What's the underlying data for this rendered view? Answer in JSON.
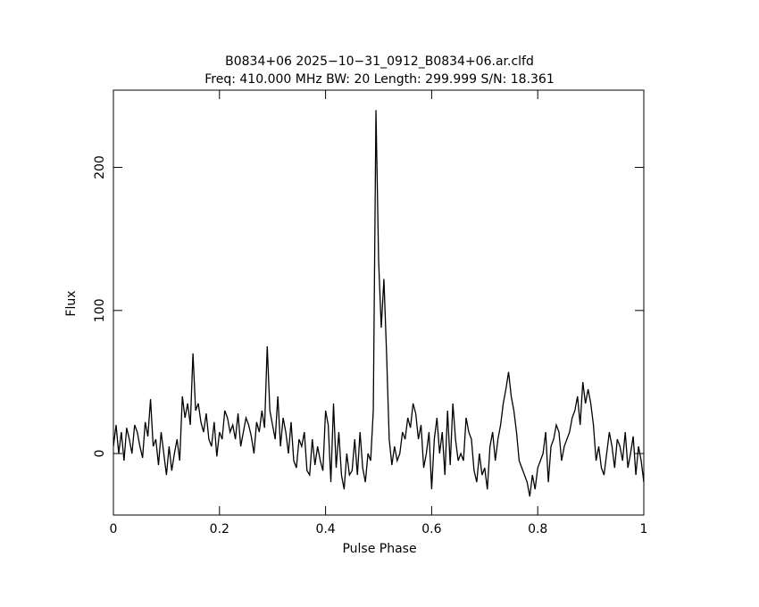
{
  "chart_data": {
    "type": "line",
    "title": "B0834+06 2025−10−31_0912_B0834+06.ar.clfd",
    "subtitle": "Freq: 410.000 MHz BW: 20 Length: 299.999 S/N: 18.361",
    "x_label": "Pulse Phase",
    "y_label": "Flux",
    "xlim": [
      0,
      1
    ],
    "ylim": [
      -43,
      254
    ],
    "xticks": [
      0,
      0.2,
      0.4,
      0.6,
      0.8,
      1
    ],
    "yticks": [
      0,
      100,
      200
    ],
    "series": [
      {
        "color": "#000000",
        "x": [
          0,
          0.005,
          0.01,
          0.015,
          0.02,
          0.025,
          0.03,
          0.035,
          0.04,
          0.045,
          0.05,
          0.055,
          0.06,
          0.065,
          0.07,
          0.075,
          0.08,
          0.085,
          0.09,
          0.095,
          0.1,
          0.105,
          0.11,
          0.115,
          0.12,
          0.125,
          0.13,
          0.135,
          0.14,
          0.145,
          0.15,
          0.155,
          0.16,
          0.165,
          0.17,
          0.175,
          0.18,
          0.185,
          0.19,
          0.195,
          0.2,
          0.205,
          0.21,
          0.215,
          0.22,
          0.225,
          0.23,
          0.235,
          0.24,
          0.245,
          0.25,
          0.255,
          0.26,
          0.265,
          0.27,
          0.275,
          0.28,
          0.285,
          0.29,
          0.295,
          0.3,
          0.305,
          0.31,
          0.315,
          0.32,
          0.325,
          0.33,
          0.335,
          0.34,
          0.345,
          0.35,
          0.355,
          0.36,
          0.365,
          0.37,
          0.375,
          0.38,
          0.385,
          0.39,
          0.395,
          0.4,
          0.405,
          0.41,
          0.415,
          0.42,
          0.425,
          0.43,
          0.435,
          0.44,
          0.445,
          0.45,
          0.455,
          0.46,
          0.465,
          0.47,
          0.475,
          0.48,
          0.485,
          0.49,
          0.495,
          0.5,
          0.505,
          0.51,
          0.515,
          0.52,
          0.525,
          0.53,
          0.535,
          0.54,
          0.545,
          0.55,
          0.555,
          0.56,
          0.565,
          0.57,
          0.575,
          0.58,
          0.585,
          0.59,
          0.595,
          0.6,
          0.605,
          0.61,
          0.615,
          0.62,
          0.625,
          0.63,
          0.635,
          0.64,
          0.645,
          0.65,
          0.655,
          0.66,
          0.665,
          0.67,
          0.675,
          0.68,
          0.685,
          0.69,
          0.695,
          0.7,
          0.705,
          0.71,
          0.715,
          0.72,
          0.725,
          0.73,
          0.735,
          0.74,
          0.745,
          0.75,
          0.755,
          0.76,
          0.765,
          0.77,
          0.775,
          0.78,
          0.785,
          0.79,
          0.795,
          0.8,
          0.805,
          0.81,
          0.815,
          0.82,
          0.825,
          0.83,
          0.835,
          0.84,
          0.845,
          0.85,
          0.855,
          0.86,
          0.865,
          0.87,
          0.875,
          0.88,
          0.885,
          0.89,
          0.895,
          0.9,
          0.905,
          0.91,
          0.915,
          0.92,
          0.925,
          0.93,
          0.935,
          0.94,
          0.945,
          0.95,
          0.955,
          0.96,
          0.965,
          0.97,
          0.975,
          0.98,
          0.985,
          0.99,
          0.995,
          1
        ],
        "values": [
          5,
          20,
          0,
          15,
          -5,
          18,
          10,
          0,
          20,
          15,
          5,
          -3,
          22,
          12,
          38,
          5,
          10,
          -8,
          15,
          0,
          -15,
          5,
          -12,
          0,
          10,
          -5,
          40,
          25,
          35,
          20,
          70,
          30,
          35,
          22,
          15,
          28,
          10,
          5,
          22,
          -2,
          15,
          10,
          30,
          25,
          15,
          20,
          10,
          28,
          5,
          15,
          25,
          20,
          12,
          0,
          22,
          15,
          30,
          18,
          75,
          30,
          20,
          10,
          40,
          5,
          25,
          15,
          0,
          22,
          -5,
          -10,
          10,
          5,
          15,
          -12,
          -15,
          10,
          -8,
          5,
          -5,
          -12,
          30,
          20,
          -20,
          35,
          -10,
          15,
          -15,
          -25,
          0,
          -15,
          -12,
          10,
          -15,
          15,
          -10,
          -20,
          0,
          -5,
          30,
          240,
          135,
          88,
          122,
          70,
          10,
          -8,
          5,
          -5,
          0,
          15,
          10,
          25,
          18,
          35,
          28,
          10,
          20,
          -10,
          0,
          15,
          -25,
          10,
          25,
          0,
          15,
          -15,
          30,
          -8,
          35,
          10,
          -5,
          0,
          -5,
          25,
          15,
          10,
          -12,
          -20,
          0,
          -15,
          -10,
          -25,
          5,
          15,
          -5,
          10,
          20,
          35,
          45,
          57,
          40,
          30,
          15,
          -5,
          -10,
          -15,
          -20,
          -30,
          -15,
          -25,
          -10,
          -5,
          0,
          15,
          -20,
          5,
          10,
          20,
          15,
          -5,
          5,
          10,
          15,
          25,
          30,
          40,
          20,
          50,
          35,
          45,
          35,
          20,
          -5,
          5,
          -10,
          -15,
          0,
          15,
          5,
          -10,
          10,
          5,
          -5,
          15,
          -10,
          0,
          12,
          -15,
          5,
          -5,
          -20
        ]
      }
    ]
  }
}
